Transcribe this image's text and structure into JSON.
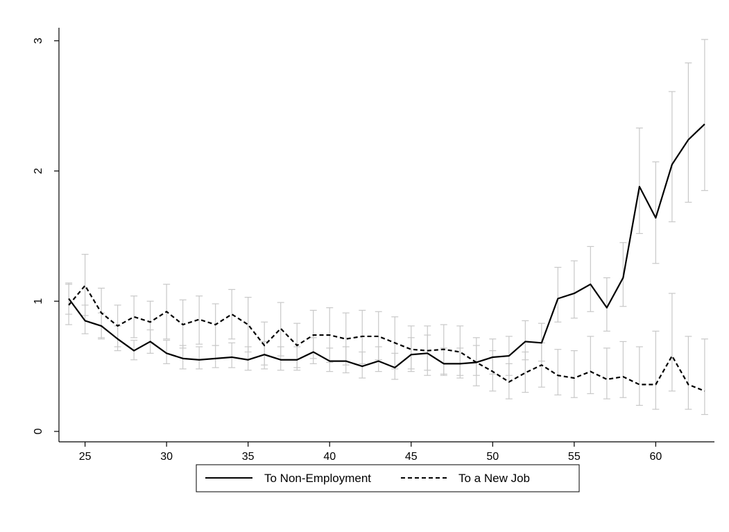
{
  "chart_data": {
    "type": "line",
    "title": "",
    "xlabel": "",
    "ylabel": "",
    "xlim": [
      23.4,
      63.6
    ],
    "ylim": [
      -0.08,
      3.1
    ],
    "x_ticks": [
      "25",
      "30",
      "35",
      "40",
      "45",
      "50",
      "55",
      "60"
    ],
    "y_ticks": [
      "0",
      "1",
      "2",
      "3"
    ],
    "grid": false,
    "legend_position": "bottom",
    "x": [
      24,
      25,
      26,
      27,
      28,
      29,
      30,
      31,
      32,
      33,
      34,
      35,
      36,
      37,
      38,
      39,
      40,
      41,
      42,
      43,
      44,
      45,
      46,
      47,
      48,
      49,
      50,
      51,
      52,
      53,
      54,
      55,
      56,
      57,
      58,
      59,
      60,
      61,
      62,
      63
    ],
    "series": [
      {
        "name": "To Non-Employment",
        "style": "solid",
        "color": "#000000",
        "values": [
          1.02,
          0.85,
          0.81,
          0.71,
          0.62,
          0.69,
          0.6,
          0.56,
          0.55,
          0.56,
          0.57,
          0.55,
          0.59,
          0.55,
          0.55,
          0.61,
          0.54,
          0.54,
          0.5,
          0.54,
          0.49,
          0.59,
          0.6,
          0.52,
          0.52,
          0.53,
          0.57,
          0.58,
          0.69,
          0.68,
          1.02,
          1.06,
          1.13,
          0.95,
          1.18,
          1.88,
          1.64,
          2.05,
          2.24,
          2.36
        ],
        "error_lo": [
          0.9,
          0.75,
          0.71,
          0.62,
          0.55,
          0.6,
          0.52,
          0.48,
          0.48,
          0.49,
          0.49,
          0.47,
          0.51,
          0.47,
          0.47,
          0.52,
          0.46,
          0.45,
          0.41,
          0.46,
          0.4,
          0.48,
          0.47,
          0.43,
          0.43,
          0.43,
          0.44,
          0.43,
          0.55,
          0.54,
          0.84,
          0.87,
          0.92,
          0.77,
          0.96,
          1.52,
          1.29,
          1.61,
          1.76,
          1.85
        ],
        "error_hi": [
          1.14,
          0.97,
          0.91,
          0.81,
          0.7,
          0.78,
          0.7,
          0.66,
          0.65,
          0.66,
          0.68,
          0.65,
          0.69,
          0.65,
          0.65,
          0.72,
          0.64,
          0.65,
          0.61,
          0.65,
          0.6,
          0.72,
          0.74,
          0.64,
          0.64,
          0.66,
          0.71,
          0.73,
          0.85,
          0.83,
          1.26,
          1.31,
          1.42,
          1.18,
          1.45,
          2.33,
          2.07,
          2.61,
          2.83,
          3.01
        ]
      },
      {
        "name": "To a New Job",
        "style": "dashed",
        "color": "#000000",
        "values": [
          0.97,
          1.12,
          0.91,
          0.81,
          0.88,
          0.84,
          0.92,
          0.82,
          0.86,
          0.82,
          0.9,
          0.82,
          0.66,
          0.79,
          0.66,
          0.74,
          0.74,
          0.71,
          0.73,
          0.73,
          0.68,
          0.63,
          0.62,
          0.63,
          0.61,
          0.53,
          0.46,
          0.38,
          0.45,
          0.51,
          0.43,
          0.41,
          0.46,
          0.4,
          0.42,
          0.36,
          0.36,
          0.58,
          0.36,
          0.31
        ],
        "error_lo": [
          0.82,
          0.89,
          0.72,
          0.65,
          0.72,
          0.68,
          0.71,
          0.64,
          0.67,
          0.66,
          0.71,
          0.61,
          0.48,
          0.58,
          0.49,
          0.56,
          0.53,
          0.51,
          0.52,
          0.55,
          0.48,
          0.46,
          0.43,
          0.44,
          0.41,
          0.35,
          0.31,
          0.25,
          0.3,
          0.34,
          0.28,
          0.26,
          0.29,
          0.25,
          0.26,
          0.2,
          0.17,
          0.31,
          0.17,
          0.13
        ],
        "error_hi": [
          1.13,
          1.36,
          1.1,
          0.97,
          1.04,
          1.0,
          1.13,
          1.01,
          1.04,
          0.98,
          1.09,
          1.03,
          0.84,
          0.99,
          0.83,
          0.93,
          0.95,
          0.91,
          0.93,
          0.92,
          0.88,
          0.81,
          0.81,
          0.82,
          0.81,
          0.72,
          0.62,
          0.52,
          0.61,
          0.68,
          0.63,
          0.62,
          0.73,
          0.64,
          0.69,
          0.65,
          0.77,
          1.06,
          0.73,
          0.71
        ]
      }
    ],
    "error_bar_color": "#c8c8c8"
  }
}
